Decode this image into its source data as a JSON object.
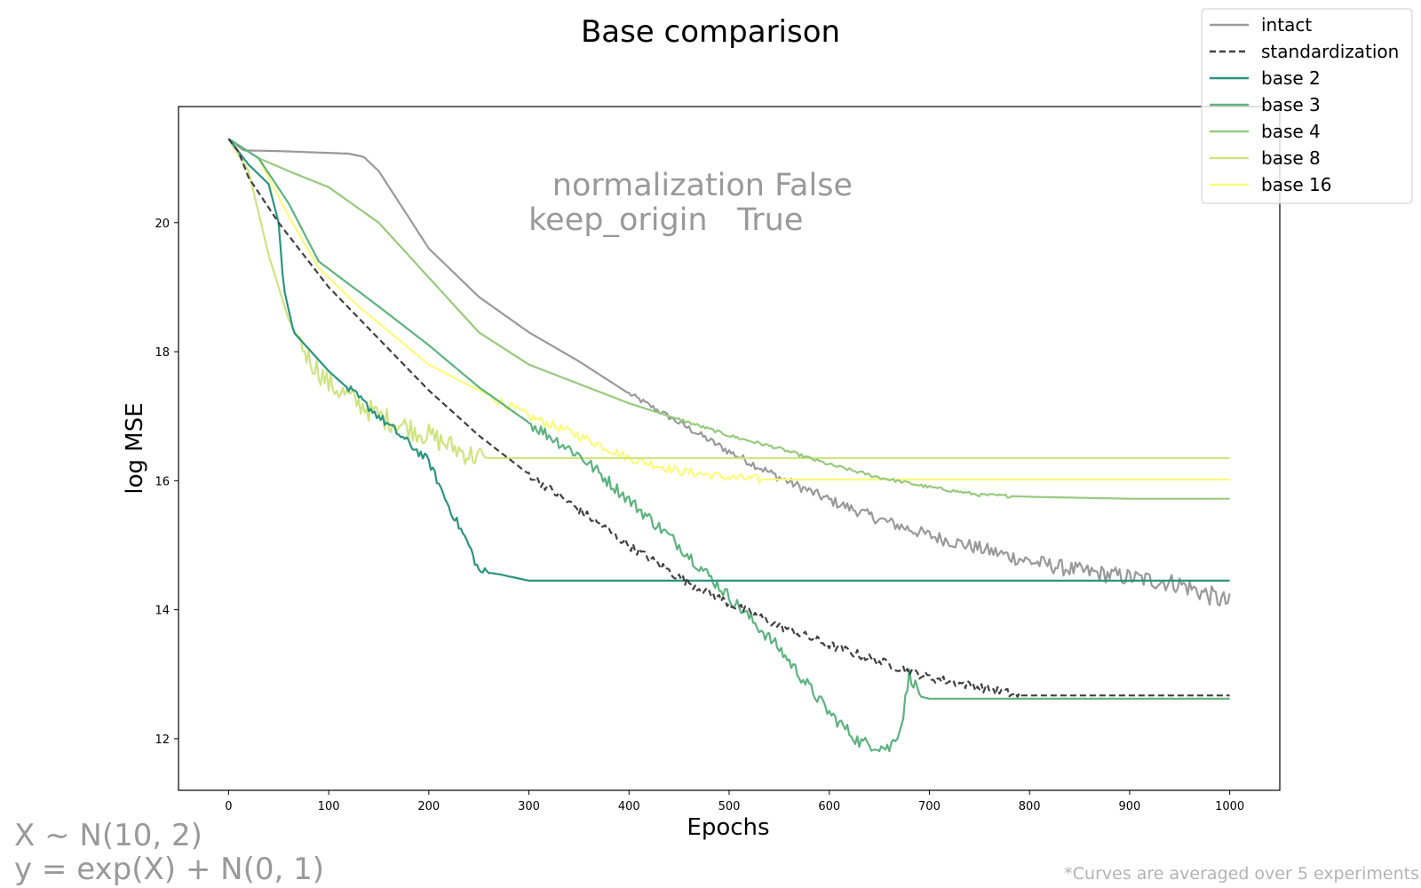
{
  "chart_data": {
    "type": "line",
    "title": "Base comparison",
    "xlabel": "Epochs",
    "ylabel": "log MSE",
    "xlim": [
      -50,
      1050
    ],
    "ylim": [
      11.2,
      21.8
    ],
    "xticks": [
      0,
      100,
      200,
      300,
      400,
      500,
      600,
      700,
      800,
      900,
      1000
    ],
    "yticks": [
      12,
      14,
      16,
      18,
      20
    ],
    "grid": false,
    "legend_position": "top-right",
    "annotation": {
      "line1_key": "normalization",
      "line1_value": "False",
      "line2_key": "keep_origin",
      "line2_value": "True"
    },
    "formula": {
      "line1": "X ~ N(10, 2)",
      "line2": "y = exp(X) + N(0, 1)"
    },
    "footnote": "*Curves are averaged over 5 experiments",
    "series": [
      {
        "name": "intact",
        "color": "#999999",
        "dash": "solid",
        "noise": 0.1,
        "noise_start": 400,
        "points": [
          [
            0,
            21.3
          ],
          [
            15,
            21.12
          ],
          [
            50,
            21.11
          ],
          [
            120,
            21.07
          ],
          [
            135,
            21.02
          ],
          [
            150,
            20.8
          ],
          [
            175,
            20.2
          ],
          [
            200,
            19.6
          ],
          [
            250,
            18.85
          ],
          [
            300,
            18.3
          ],
          [
            350,
            17.85
          ],
          [
            400,
            17.35
          ],
          [
            450,
            16.9
          ],
          [
            500,
            16.45
          ],
          [
            550,
            16.05
          ],
          [
            600,
            15.7
          ],
          [
            650,
            15.4
          ],
          [
            700,
            15.15
          ],
          [
            750,
            14.95
          ],
          [
            800,
            14.75
          ],
          [
            850,
            14.6
          ],
          [
            900,
            14.5
          ],
          [
            950,
            14.4
          ],
          [
            1000,
            14.1
          ]
        ]
      },
      {
        "name": "standardization",
        "color": "#404040",
        "dash": "dashed",
        "noise": 0.07,
        "noise_start": 300,
        "noise_end": 790,
        "points": [
          [
            0,
            21.3
          ],
          [
            10,
            21.1
          ],
          [
            20,
            20.7
          ],
          [
            50,
            20.0
          ],
          [
            100,
            19.0
          ],
          [
            150,
            18.2
          ],
          [
            200,
            17.4
          ],
          [
            250,
            16.7
          ],
          [
            300,
            16.1
          ],
          [
            350,
            15.55
          ],
          [
            400,
            15.0
          ],
          [
            450,
            14.5
          ],
          [
            500,
            14.1
          ],
          [
            550,
            13.75
          ],
          [
            600,
            13.45
          ],
          [
            650,
            13.2
          ],
          [
            700,
            12.95
          ],
          [
            750,
            12.8
          ],
          [
            790,
            12.67
          ],
          [
            1000,
            12.67
          ]
        ]
      },
      {
        "name": "base 2",
        "color": "#2b9380",
        "dash": "solid",
        "noise": 0.07,
        "noise_start": 120,
        "noise_end": 260,
        "points": [
          [
            0,
            21.3
          ],
          [
            20,
            20.9
          ],
          [
            40,
            20.6
          ],
          [
            50,
            20.0
          ],
          [
            55,
            19.0
          ],
          [
            65,
            18.3
          ],
          [
            100,
            17.7
          ],
          [
            150,
            17.0
          ],
          [
            200,
            16.3
          ],
          [
            220,
            15.6
          ],
          [
            240,
            15.0
          ],
          [
            250,
            14.6
          ],
          [
            270,
            14.55
          ],
          [
            300,
            14.45
          ],
          [
            360,
            14.45
          ],
          [
            1000,
            14.45
          ]
        ]
      },
      {
        "name": "base 3",
        "color": "#5db27f",
        "dash": "solid",
        "noise": 0.1,
        "noise_start": 300,
        "noise_end": 690,
        "points": [
          [
            0,
            21.3
          ],
          [
            30,
            21.0
          ],
          [
            60,
            20.3
          ],
          [
            90,
            19.4
          ],
          [
            150,
            18.7
          ],
          [
            200,
            18.1
          ],
          [
            250,
            17.45
          ],
          [
            300,
            16.9
          ],
          [
            350,
            16.4
          ],
          [
            400,
            15.7
          ],
          [
            450,
            15.0
          ],
          [
            500,
            14.2
          ],
          [
            550,
            13.4
          ],
          [
            600,
            12.4
          ],
          [
            630,
            11.95
          ],
          [
            660,
            11.85
          ],
          [
            672,
            12.2
          ],
          [
            680,
            13.0
          ],
          [
            692,
            12.65
          ],
          [
            700,
            12.62
          ],
          [
            1000,
            12.62
          ]
        ]
      },
      {
        "name": "base 4",
        "color": "#98c97e",
        "dash": "solid",
        "noise": 0.025,
        "noise_start": 450,
        "noise_end": 780,
        "points": [
          [
            0,
            21.3
          ],
          [
            30,
            21.0
          ],
          [
            60,
            20.8
          ],
          [
            100,
            20.55
          ],
          [
            150,
            20.0
          ],
          [
            200,
            19.15
          ],
          [
            250,
            18.3
          ],
          [
            300,
            17.8
          ],
          [
            350,
            17.5
          ],
          [
            400,
            17.2
          ],
          [
            450,
            16.95
          ],
          [
            500,
            16.7
          ],
          [
            550,
            16.5
          ],
          [
            600,
            16.25
          ],
          [
            650,
            16.05
          ],
          [
            700,
            15.9
          ],
          [
            750,
            15.78
          ],
          [
            800,
            15.75
          ],
          [
            900,
            15.72
          ],
          [
            1000,
            15.72
          ]
        ]
      },
      {
        "name": "base 8",
        "color": "#cfe480",
        "dash": "solid",
        "noise": 0.18,
        "noise_start": 70,
        "noise_end": 255,
        "points": [
          [
            0,
            21.3
          ],
          [
            20,
            20.8
          ],
          [
            40,
            19.5
          ],
          [
            60,
            18.5
          ],
          [
            80,
            17.9
          ],
          [
            100,
            17.5
          ],
          [
            150,
            17.0
          ],
          [
            200,
            16.7
          ],
          [
            240,
            16.4
          ],
          [
            260,
            16.35
          ],
          [
            1000,
            16.35
          ]
        ]
      },
      {
        "name": "base 16",
        "color": "#fbfb7c",
        "dash": "solid",
        "noise": 0.07,
        "noise_start": 250,
        "noise_end": 530,
        "points": [
          [
            0,
            21.3
          ],
          [
            30,
            21.0
          ],
          [
            60,
            20.1
          ],
          [
            90,
            19.3
          ],
          [
            130,
            18.7
          ],
          [
            200,
            17.8
          ],
          [
            250,
            17.4
          ],
          [
            300,
            17.0
          ],
          [
            350,
            16.7
          ],
          [
            400,
            16.35
          ],
          [
            450,
            16.15
          ],
          [
            500,
            16.05
          ],
          [
            530,
            16.02
          ],
          [
            1000,
            16.02
          ]
        ]
      }
    ]
  }
}
